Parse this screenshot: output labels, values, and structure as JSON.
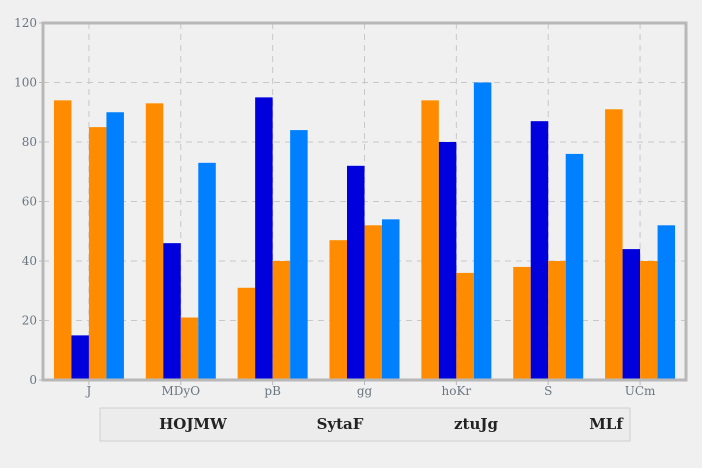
{
  "chart_data": {
    "type": "bar",
    "categories": [
      "J",
      "MDyO",
      "pB",
      "gg",
      "hoKr",
      "S",
      "UCm"
    ],
    "series": [
      {
        "name": "HOJMW",
        "color": "#ff8c00",
        "values": [
          94,
          93,
          31,
          47,
          94,
          38,
          91
        ]
      },
      {
        "name": "SytaF",
        "color": "#0000dd",
        "values": [
          15,
          46,
          95,
          72,
          80,
          87,
          44
        ]
      },
      {
        "name": "ztuJg",
        "color": "#ff8c00",
        "values": [
          85,
          21,
          40,
          52,
          36,
          40,
          40
        ]
      },
      {
        "name": "MLf",
        "color": "#0080ff",
        "values": [
          90,
          73,
          84,
          54,
          100,
          76,
          52
        ]
      }
    ],
    "yticks": [
      0,
      20,
      40,
      60,
      80,
      100,
      120
    ],
    "ylim": [
      0,
      120
    ],
    "grid": true,
    "legend_position": "bottom"
  }
}
